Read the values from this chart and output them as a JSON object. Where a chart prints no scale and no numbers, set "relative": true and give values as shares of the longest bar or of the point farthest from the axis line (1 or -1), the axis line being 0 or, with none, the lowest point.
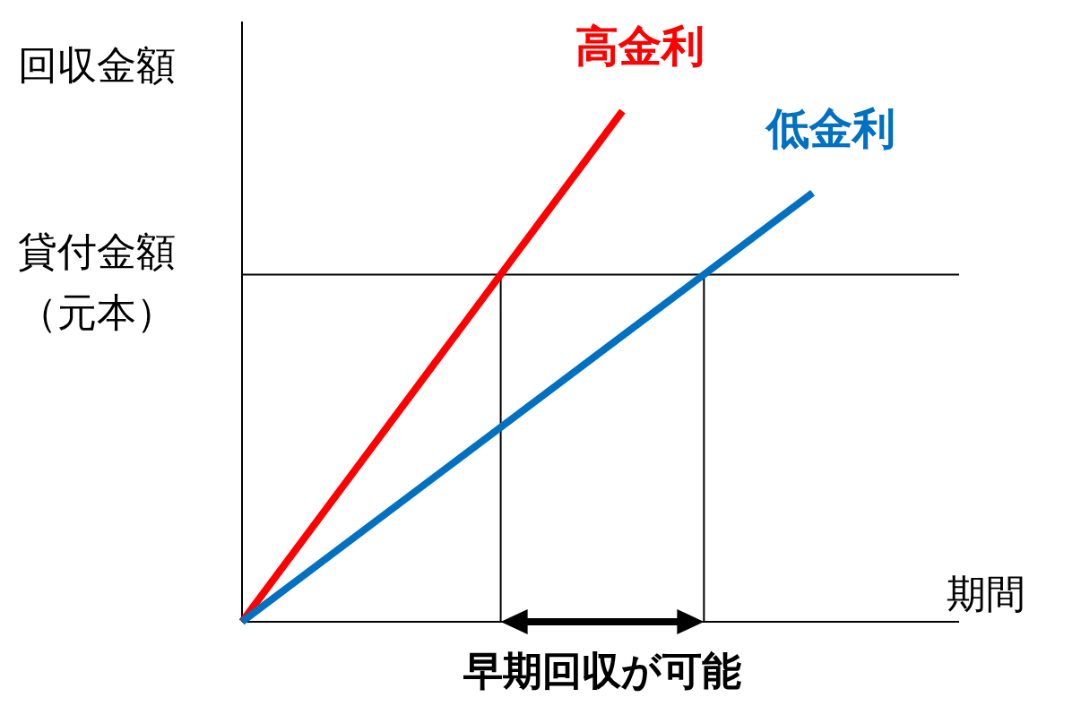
{
  "chart_data": {
    "type": "line",
    "relative": true,
    "xlabel": "期間",
    "ylabel": "回収金額",
    "categories": [
      null,
      null,
      null,
      null
    ],
    "series": [
      {
        "name": "高金利",
        "color": "#ff0000",
        "values": [
          0,
          0.5,
          1,
          null
        ]
      },
      {
        "name": "低金利",
        "color": "#0070c0",
        "values": [
          0,
          0.28,
          0.56,
          0.84
        ]
      }
    ],
    "ref_lines": [
      {
        "axis": "y",
        "value": 0.68,
        "label": "貸付金額（元本）",
        "color": "#000000"
      }
    ],
    "annotations": [
      "早期回収が可能"
    ]
  }
}
